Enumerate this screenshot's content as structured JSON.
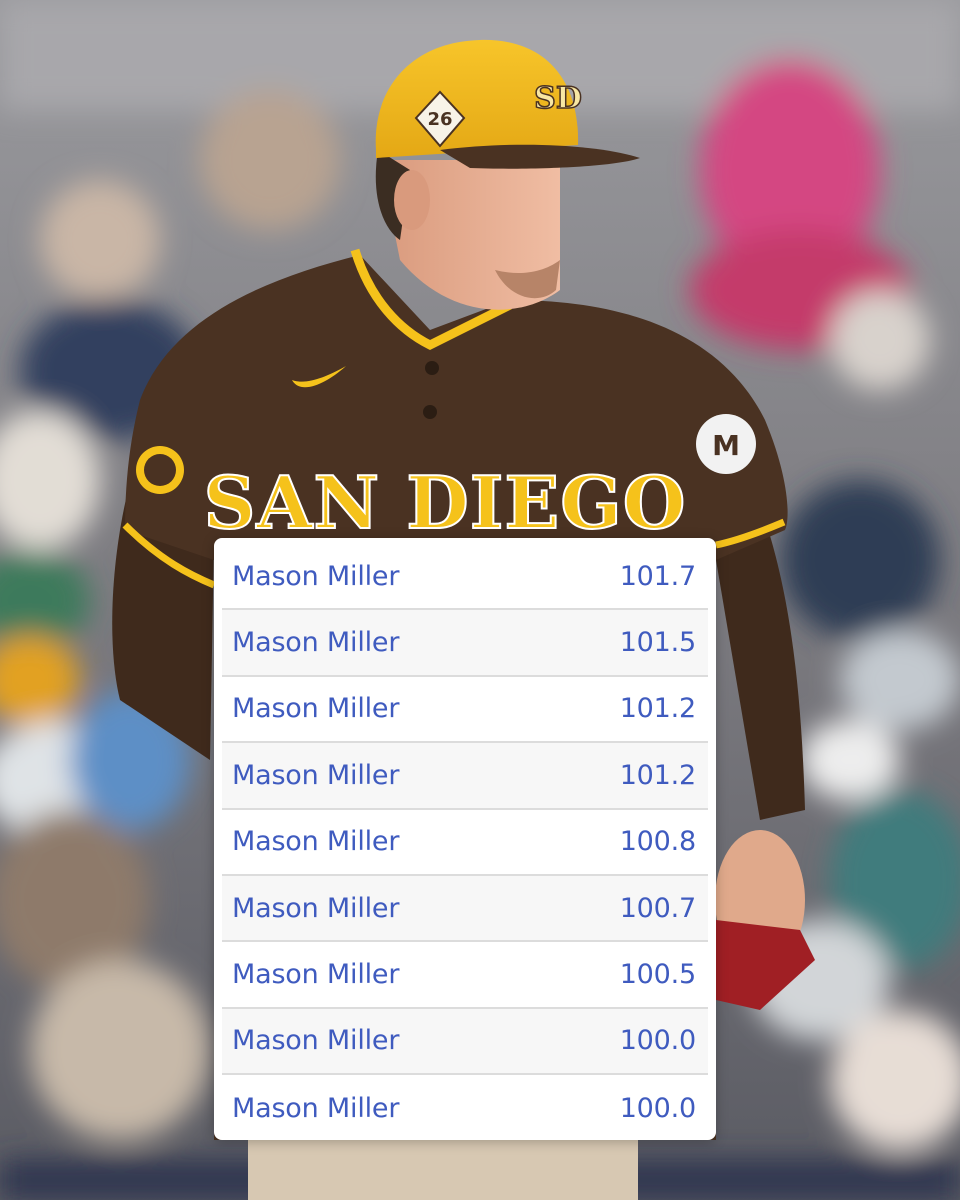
{
  "photo": {
    "jersey_text": "SAN DIEGO",
    "cap_badge": "26",
    "cap_logo": "SD",
    "colors": {
      "jersey": "#4a3222",
      "gold": "#f5c21b",
      "cap": "#f3b81f",
      "crowd": "#7a7880",
      "link_blue": "#3f5bbf"
    }
  },
  "table": {
    "rows": [
      {
        "name": "Mason Miller",
        "velocity": "101.7"
      },
      {
        "name": "Mason Miller",
        "velocity": "101.5"
      },
      {
        "name": "Mason Miller",
        "velocity": "101.2"
      },
      {
        "name": "Mason Miller",
        "velocity": "101.2"
      },
      {
        "name": "Mason Miller",
        "velocity": "100.8"
      },
      {
        "name": "Mason Miller",
        "velocity": "100.7"
      },
      {
        "name": "Mason Miller",
        "velocity": "100.5"
      },
      {
        "name": "Mason Miller",
        "velocity": "100.0"
      },
      {
        "name": "Mason Miller",
        "velocity": "100.0"
      }
    ]
  }
}
